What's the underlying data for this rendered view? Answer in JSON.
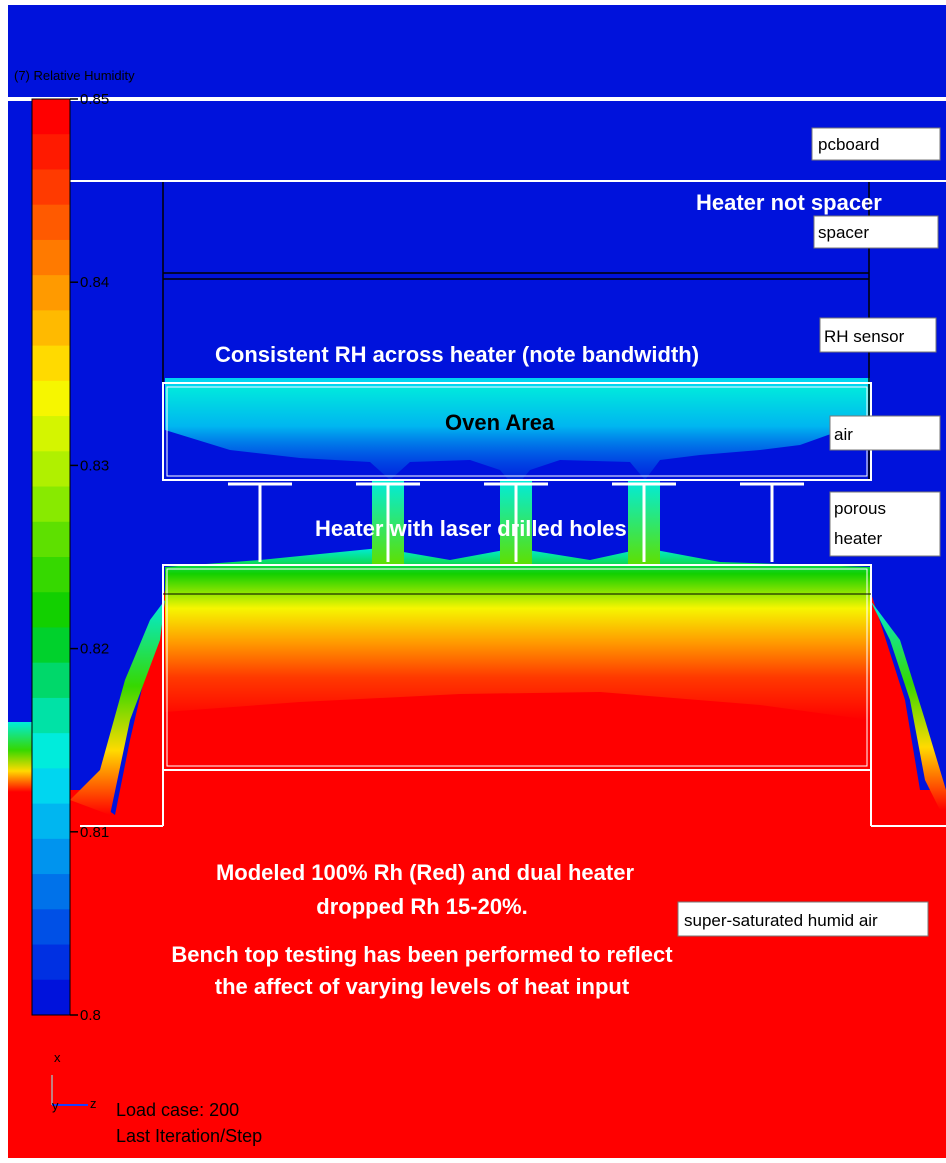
{
  "legend": {
    "title": "(7) Relative Humidity",
    "ticks": [
      "0.85",
      "0.84",
      "0.83",
      "0.82",
      "0.81",
      "0.8"
    ],
    "colors": [
      "#ff0000",
      "#ff1a00",
      "#ff3a00",
      "#ff5a00",
      "#ff7a00",
      "#ff9a00",
      "#ffba00",
      "#ffda00",
      "#f6f600",
      "#d4f500",
      "#b0f000",
      "#88ea00",
      "#5ee000",
      "#36d800",
      "#12d000",
      "#00d12c",
      "#00d86a",
      "#00e2a6",
      "#00ecdc",
      "#00d6f0",
      "#00b6f0",
      "#0094ee",
      "#0072ea",
      "#0050e6",
      "#0030e2",
      "#0012dc"
    ]
  },
  "labels": {
    "pcboard": "pcboard",
    "spacer": "spacer",
    "rh_sensor": "RH sensor",
    "air": "air",
    "porous_heater_1": "porous",
    "porous_heater_2": "heater",
    "humid_air": "super-saturated humid air"
  },
  "notes": {
    "heater_not_spacer": "Heater not spacer",
    "consistent_rh": "Consistent RH across heater (note bandwidth)",
    "oven_area": "Oven Area",
    "laser_holes": "Heater with laser drilled holes",
    "modeled_1": "Modeled 100% Rh (Red) and dual heater",
    "modeled_2": "dropped Rh 15-20%.",
    "bench_1": "Bench top testing has been performed to reflect",
    "bench_2": "the affect of varying levels of heat input"
  },
  "footer": {
    "axis_x": "x",
    "axis_y": "y",
    "axis_z": "z",
    "load_case": "Load case: 200",
    "iteration": "Last Iteration/Step"
  },
  "colors": {
    "field_low": "#0012dc",
    "field_high": "#ff0000",
    "background": "#ffffff"
  }
}
